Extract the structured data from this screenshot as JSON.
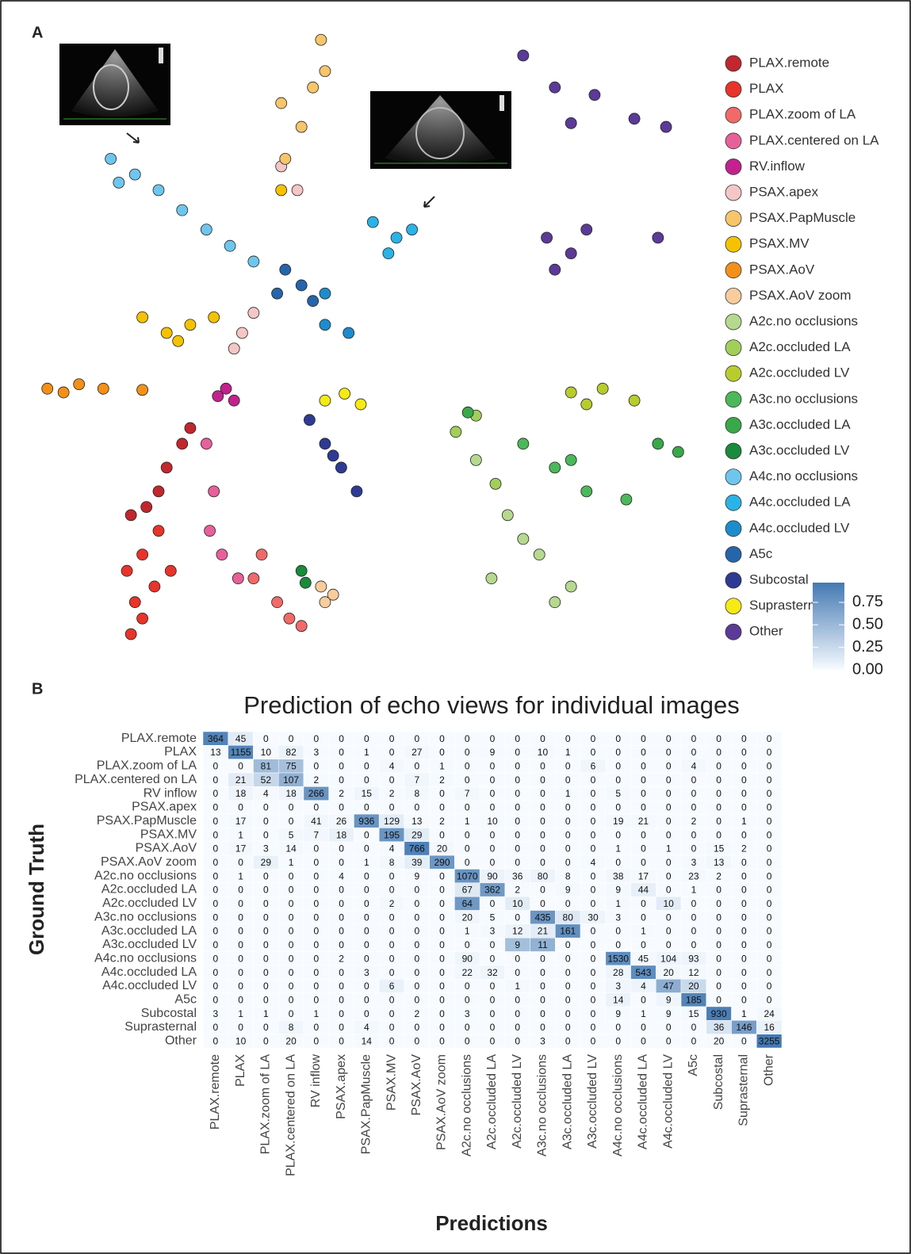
{
  "chart_data": [
    {
      "type": "scatter",
      "panel_label": "A",
      "xlim": [
        0,
        100
      ],
      "ylim": [
        0,
        100
      ],
      "legend": "right",
      "series": [
        {
          "name": "PLAX.remote",
          "color": "#c1272d",
          "x": [
            18.2,
            21.2,
            24.7,
            15.9,
            20,
            23.5
          ],
          "y": [
            24.1,
            30.4,
            36.7,
            22.8,
            26.6,
            34.2
          ]
        },
        {
          "name": "PLAX",
          "color": "#e8342a",
          "x": [
            15.3,
            17.6,
            20,
            16.5,
            15.9,
            19.4,
            21.8,
            17.6
          ],
          "y": [
            13.9,
            16.5,
            20.3,
            8.9,
            3.8,
            11.4,
            13.9,
            6.3
          ]
        },
        {
          "name": "PLAX.zoom of LA",
          "color": "#f06a6a",
          "x": [
            34.1,
            37.6,
            41.2,
            35.3,
            39.4
          ],
          "y": [
            12.7,
            8.9,
            5.1,
            16.5,
            6.3
          ]
        },
        {
          "name": "PLAX.centered on LA",
          "color": "#e8609a",
          "x": [
            27.1,
            28.2,
            27.6,
            29.4,
            31.8
          ],
          "y": [
            34.2,
            26.6,
            20.3,
            16.5,
            12.7
          ]
        },
        {
          "name": "RV.inflow",
          "color": "#c2228e",
          "x": [
            30,
            31.2,
            28.8
          ],
          "y": [
            43,
            41.1,
            41.8
          ]
        },
        {
          "name": "PSAX.apex",
          "color": "#f5c6c6",
          "x": [
            32.4,
            34.1,
            31.2,
            40.6,
            38.2
          ],
          "y": [
            51.9,
            55.1,
            49.4,
            74.7,
            78.5
          ]
        },
        {
          "name": "PSAX.PapMuscle",
          "color": "#f7c56a",
          "x": [
            44.1,
            42.9,
            41.2,
            38.8,
            38.2,
            44.7
          ],
          "y": [
            98.7,
            91.1,
            84.8,
            79.7,
            88.6,
            93.7
          ]
        },
        {
          "name": "PSAX.MV",
          "color": "#f5c200",
          "x": [
            21.2,
            24.7,
            28.2,
            22.9,
            17.6,
            38.2
          ],
          "y": [
            51.9,
            53.2,
            54.4,
            50.6,
            54.4,
            74.7
          ]
        },
        {
          "name": "PSAX.AoV",
          "color": "#f39019",
          "x": [
            3.5,
            8.2,
            11.8,
            17.6,
            5.9
          ],
          "y": [
            43,
            43.7,
            43,
            42.8,
            42.4
          ]
        },
        {
          "name": "PSAX.AoV zoom",
          "color": "#f9cc9c",
          "x": [
            44.1,
            45.9,
            44.7
          ],
          "y": [
            11.4,
            10.1,
            8.9
          ]
        },
        {
          "name": "A2c.no occlusions",
          "color": "#b5d98f",
          "x": [
            67.1,
            71.8,
            76.5,
            81.2,
            74.1,
            78.8,
            69.4
          ],
          "y": [
            31.6,
            22.8,
            16.5,
            11.4,
            19,
            8.9,
            12.7
          ]
        },
        {
          "name": "A2c.occluded LA",
          "color": "#a2cf5a",
          "x": [
            64.1,
            67.1,
            70
          ],
          "y": [
            36.1,
            38.7,
            27.8
          ]
        },
        {
          "name": "A2c.occluded LV",
          "color": "#b8cc2e",
          "x": [
            81.2,
            85.9,
            90.6,
            83.5
          ],
          "y": [
            42.4,
            43,
            41.1,
            40.5
          ]
        },
        {
          "name": "A3c.no occlusions",
          "color": "#4cb85a",
          "x": [
            74.1,
            78.8,
            83.5,
            89.4,
            81.2
          ],
          "y": [
            34.2,
            30.4,
            26.6,
            25.3,
            31.6
          ]
        },
        {
          "name": "A3c.occluded LA",
          "color": "#39a849",
          "x": [
            94.1,
            97.1,
            65.9
          ],
          "y": [
            34.2,
            32.9,
            39.2
          ]
        },
        {
          "name": "A3c.occluded LV",
          "color": "#1a8a3c",
          "x": [
            41.2,
            41.8
          ],
          "y": [
            13.9,
            12
          ]
        },
        {
          "name": "A4c.no occlusions",
          "color": "#6ec6ee",
          "x": [
            12.9,
            20,
            27.1,
            34.1,
            16.5,
            23.5,
            30.6,
            14.1
          ],
          "y": [
            79.7,
            74.7,
            68.4,
            63.3,
            77.2,
            71.5,
            65.8,
            75.9
          ]
        },
        {
          "name": "A4c.occluded LA",
          "color": "#2ab3e6",
          "x": [
            51.8,
            55.3,
            57.6,
            54.1
          ],
          "y": [
            69.6,
            67.1,
            68.4,
            64.6
          ]
        },
        {
          "name": "A4c.occluded LV",
          "color": "#1d8ccd",
          "x": [
            44.7,
            48.2,
            44.7
          ],
          "y": [
            53.2,
            51.9,
            58.2
          ]
        },
        {
          "name": "A5c",
          "color": "#2565ab",
          "x": [
            38.8,
            41.2,
            42.9,
            37.6
          ],
          "y": [
            62,
            59.5,
            57,
            58.2
          ]
        },
        {
          "name": "Subcostal",
          "color": "#2f3a94",
          "x": [
            42.4,
            44.7,
            47.1,
            49.4,
            45.9
          ],
          "y": [
            38,
            34.2,
            30.4,
            26.6,
            32.3
          ]
        },
        {
          "name": "Suprasternal",
          "color": "#f5ea14",
          "x": [
            44.7,
            47.6,
            50
          ],
          "y": [
            41.1,
            42.2,
            40.5
          ]
        },
        {
          "name": "Other",
          "color": "#5b3a98",
          "x": [
            74.1,
            78.8,
            84.7,
            90.6,
            81.2,
            77.6,
            81.2,
            83.5,
            78.8,
            94.1,
            95.3
          ],
          "y": [
            96.2,
            91.1,
            89.9,
            86.1,
            85.4,
            67.1,
            64.6,
            68.4,
            62,
            67.1,
            84.8
          ]
        }
      ]
    },
    {
      "type": "heatmap",
      "panel_label": "B",
      "title": "Prediction of echo views for individual images",
      "ylabel": "Ground Truth",
      "xlabel": "Predictions",
      "columns": [
        "PLAX.remote",
        "PLAX",
        "PLAX.zoom of LA",
        "PLAX.centered on LA",
        "RV inflow",
        "PSAX.apex",
        "PSAX.PapMuscle",
        "PSAX.MV",
        "PSAX.AoV",
        "PSAX.AoV zoom",
        "A2c.no occlusions",
        "A2c.occluded LA",
        "A2c.occluded LV",
        "A3c.no occlusions",
        "A3c.occluded LA",
        "A3c.occluded LV",
        "A4c.no occlusions",
        "A4c.occluded LA",
        "A4c.occluded LV",
        "A5c",
        "Subcostal",
        "Suprasternal",
        "Other"
      ],
      "rows": [
        "PLAX.remote",
        "PLAX",
        "PLAX.zoom of LA",
        "PLAX.centered on LA",
        "RV inflow",
        "PSAX.apex",
        "PSAX.PapMuscle",
        "PSAX.MV",
        "PSAX.AoV",
        "PSAX.AoV zoom",
        "A2c.no occlusions",
        "A2c.occluded LA",
        "A2c.occluded LV",
        "A3c.no occlusions",
        "A3c.occluded LA",
        "A3c.occluded LV",
        "A4c.no occlusions",
        "A4c.occluded LA",
        "A4c.occluded LV",
        "A5c",
        "Subcostal",
        "Suprasternal",
        "Other"
      ],
      "matrix": [
        [
          364,
          45,
          0,
          0,
          0,
          0,
          0,
          0,
          0,
          0,
          0,
          0,
          0,
          0,
          0,
          0,
          0,
          0,
          0,
          0,
          0,
          0,
          0
        ],
        [
          13,
          1155,
          10,
          82,
          3,
          0,
          1,
          0,
          27,
          0,
          0,
          9,
          0,
          10,
          1,
          0,
          0,
          0,
          0,
          0,
          0,
          0,
          0
        ],
        [
          0,
          0,
          81,
          75,
          0,
          0,
          0,
          4,
          0,
          1,
          0,
          0,
          0,
          0,
          0,
          6,
          0,
          0,
          0,
          4,
          0,
          0,
          0
        ],
        [
          0,
          21,
          52,
          107,
          2,
          0,
          0,
          0,
          7,
          2,
          0,
          0,
          0,
          0,
          0,
          0,
          0,
          0,
          0,
          0,
          0,
          0,
          0
        ],
        [
          0,
          18,
          4,
          18,
          266,
          2,
          15,
          2,
          8,
          0,
          7,
          0,
          0,
          0,
          1,
          0,
          5,
          0,
          0,
          0,
          0,
          0,
          0
        ],
        [
          0,
          0,
          0,
          0,
          0,
          0,
          0,
          0,
          0,
          0,
          0,
          0,
          0,
          0,
          0,
          0,
          0,
          0,
          0,
          0,
          0,
          0,
          0
        ],
        [
          0,
          17,
          0,
          0,
          41,
          26,
          936,
          129,
          13,
          2,
          1,
          10,
          0,
          0,
          0,
          0,
          19,
          21,
          0,
          2,
          0,
          1,
          0
        ],
        [
          0,
          1,
          0,
          5,
          7,
          18,
          0,
          195,
          29,
          0,
          0,
          0,
          0,
          0,
          0,
          0,
          0,
          0,
          0,
          0,
          0,
          0,
          0
        ],
        [
          0,
          17,
          3,
          14,
          0,
          0,
          0,
          4,
          766,
          20,
          0,
          0,
          0,
          0,
          0,
          0,
          1,
          0,
          1,
          0,
          15,
          2,
          0
        ],
        [
          0,
          0,
          29,
          1,
          0,
          0,
          1,
          8,
          39,
          290,
          0,
          0,
          0,
          0,
          0,
          4,
          0,
          0,
          0,
          3,
          13,
          0,
          0
        ],
        [
          0,
          1,
          0,
          0,
          0,
          4,
          0,
          0,
          9,
          0,
          1070,
          90,
          36,
          80,
          8,
          0,
          38,
          17,
          0,
          23,
          2,
          0,
          0
        ],
        [
          0,
          0,
          0,
          0,
          0,
          0,
          0,
          0,
          0,
          0,
          67,
          362,
          2,
          0,
          9,
          0,
          9,
          44,
          0,
          1,
          0,
          0,
          0
        ],
        [
          0,
          0,
          0,
          0,
          0,
          0,
          0,
          2,
          0,
          0,
          64,
          0,
          10,
          0,
          0,
          0,
          1,
          0,
          10,
          0,
          0,
          0,
          0
        ],
        [
          0,
          0,
          0,
          0,
          0,
          0,
          0,
          0,
          0,
          0,
          20,
          5,
          0,
          435,
          80,
          30,
          3,
          0,
          0,
          0,
          0,
          0,
          0
        ],
        [
          0,
          0,
          0,
          0,
          0,
          0,
          0,
          0,
          0,
          0,
          1,
          3,
          12,
          21,
          161,
          0,
          0,
          1,
          0,
          0,
          0,
          0,
          0
        ],
        [
          0,
          0,
          0,
          0,
          0,
          0,
          0,
          0,
          0,
          0,
          0,
          0,
          9,
          11,
          0,
          0,
          0,
          0,
          0,
          0,
          0,
          0,
          0
        ],
        [
          0,
          0,
          0,
          0,
          0,
          2,
          0,
          0,
          0,
          0,
          90,
          0,
          0,
          0,
          0,
          0,
          1530,
          45,
          104,
          93,
          0,
          0,
          0
        ],
        [
          0,
          0,
          0,
          0,
          0,
          0,
          3,
          0,
          0,
          0,
          22,
          32,
          0,
          0,
          0,
          0,
          28,
          543,
          20,
          12,
          0,
          0,
          0
        ],
        [
          0,
          0,
          0,
          0,
          0,
          0,
          0,
          6,
          0,
          0,
          0,
          0,
          1,
          0,
          0,
          0,
          3,
          4,
          47,
          20,
          0,
          0,
          0
        ],
        [
          0,
          0,
          0,
          0,
          0,
          0,
          0,
          0,
          0,
          0,
          0,
          0,
          0,
          0,
          0,
          0,
          14,
          0,
          9,
          185,
          0,
          0,
          0
        ],
        [
          3,
          1,
          1,
          0,
          1,
          0,
          0,
          0,
          2,
          0,
          3,
          0,
          0,
          0,
          0,
          0,
          9,
          1,
          9,
          15,
          930,
          1,
          24
        ],
        [
          0,
          0,
          0,
          8,
          0,
          0,
          4,
          0,
          0,
          0,
          0,
          0,
          0,
          0,
          0,
          0,
          0,
          0,
          0,
          0,
          36,
          146,
          16
        ],
        [
          0,
          10,
          0,
          20,
          0,
          0,
          14,
          0,
          0,
          0,
          0,
          0,
          0,
          3,
          0,
          0,
          0,
          0,
          0,
          0,
          20,
          0,
          3255
        ]
      ],
      "colorscale": [
        "#f7fbff",
        "#4479b2"
      ],
      "zlim": [
        0,
        0.97
      ],
      "zticks": [
        {
          "value": 0,
          "label": "0.00"
        },
        0.25,
        {
          "value": 0.5,
          "label": "0.50"
        },
        0.75
      ]
    }
  ]
}
